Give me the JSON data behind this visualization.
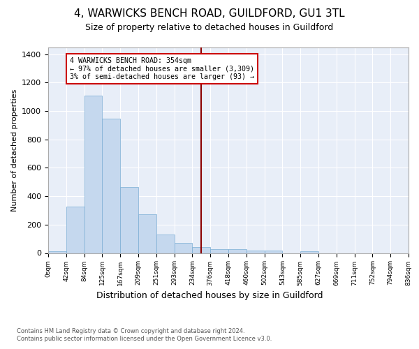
{
  "title": "4, WARWICKS BENCH ROAD, GUILDFORD, GU1 3TL",
  "subtitle": "Size of property relative to detached houses in Guildford",
  "xlabel_bottom": "Distribution of detached houses by size in Guildford",
  "ylabel": "Number of detached properties",
  "footer_line1": "Contains HM Land Registry data © Crown copyright and database right 2024.",
  "footer_line2": "Contains public sector information licensed under the Open Government Licence v3.0.",
  "bar_labels": [
    "0sqm",
    "42sqm",
    "84sqm",
    "125sqm",
    "167sqm",
    "209sqm",
    "251sqm",
    "293sqm",
    "234sqm",
    "376sqm",
    "418sqm",
    "460sqm",
    "502sqm",
    "543sqm",
    "585sqm",
    "627sqm",
    "669sqm",
    "711sqm",
    "752sqm",
    "794sqm",
    "836sqm"
  ],
  "bin_heights": [
    10,
    325,
    1110,
    945,
    465,
    275,
    130,
    70,
    40,
    25,
    25,
    18,
    18,
    0,
    10,
    0,
    0,
    0,
    0,
    0
  ],
  "bar_color": "#c5d8ee",
  "bar_edge_color": "#7aadd4",
  "vline_color": "#8b0000",
  "annotation_text": "4 WARWICKS BENCH ROAD: 354sqm\n← 97% of detached houses are smaller (3,309)\n3% of semi-detached houses are larger (93) →",
  "annotation_box_color": "#ffffff",
  "annotation_box_edge": "#cc0000",
  "ylim": [
    0,
    1450
  ],
  "yticks": [
    0,
    200,
    400,
    600,
    800,
    1000,
    1200,
    1400
  ],
  "bg_color": "#e8eef8",
  "title_fontsize": 11,
  "subtitle_fontsize": 9,
  "xlabel_fontsize": 9,
  "footer_fontsize": 6
}
